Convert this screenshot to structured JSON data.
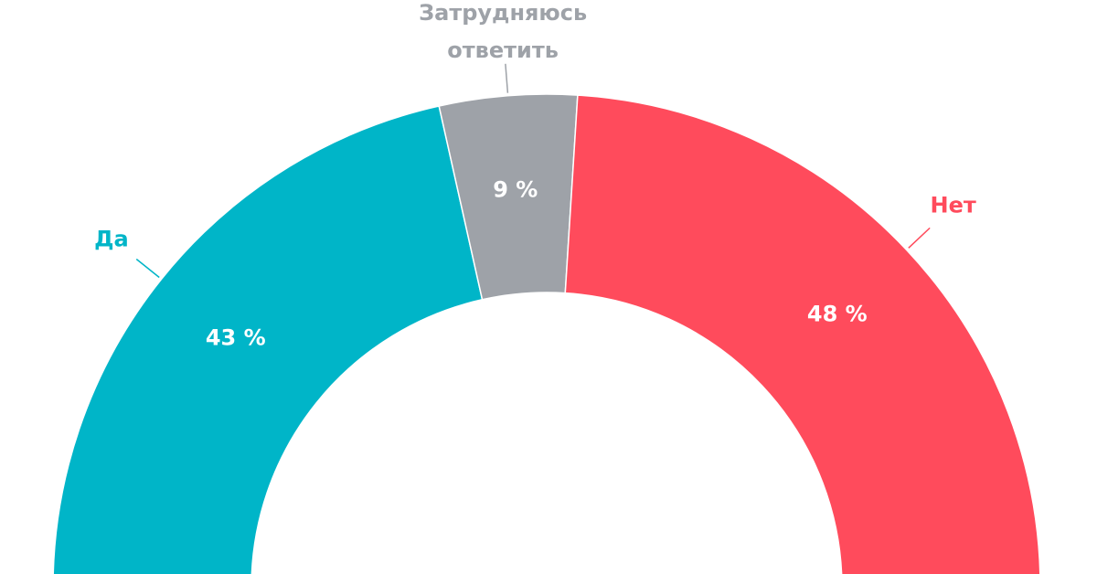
{
  "chart_data": {
    "type": "half-donut",
    "categories": [
      "Да",
      "Затрудняюсь ответить",
      "Нет"
    ],
    "values": [
      43,
      9,
      48
    ],
    "value_labels": [
      "43 %",
      "9 %",
      "48 %"
    ],
    "colors": [
      "#00b5c8",
      "#9ea2a8",
      "#ff4b5c"
    ]
  }
}
